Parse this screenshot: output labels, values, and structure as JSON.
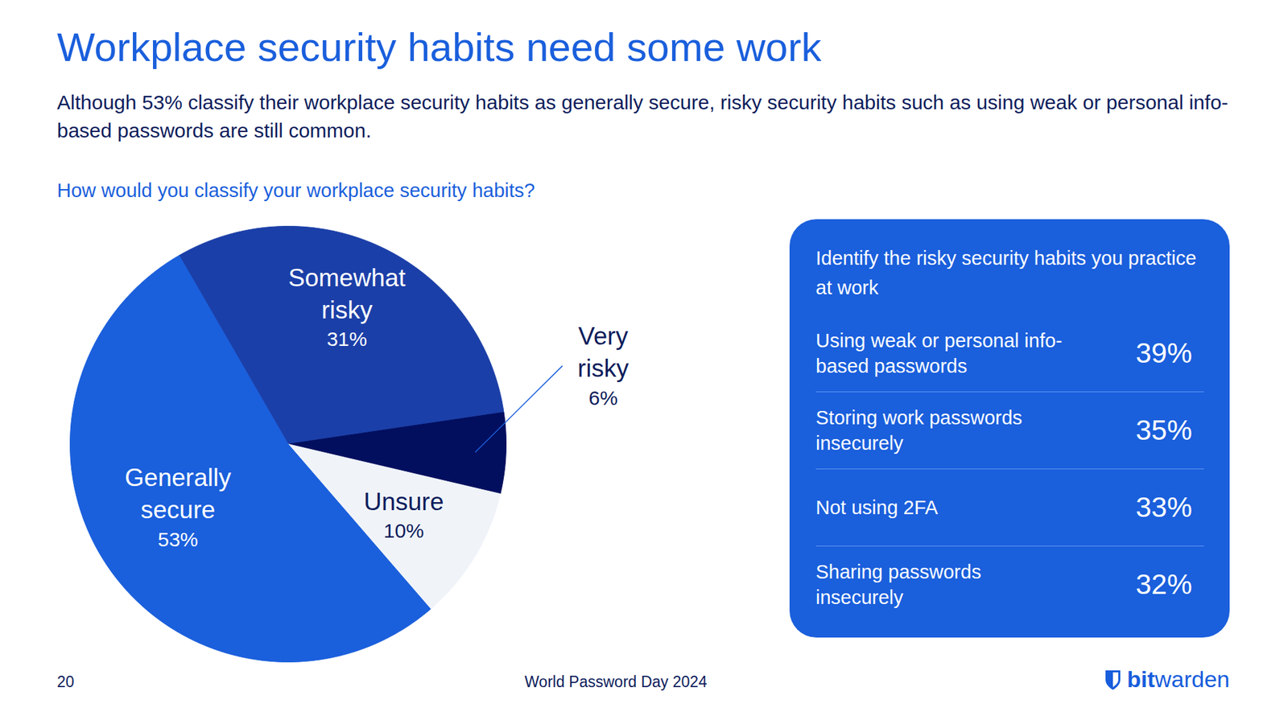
{
  "title": "Workplace security habits need some work",
  "subtitle": "Although 53% classify their workplace security habits as generally secure, risky security habits such as using weak or personal info-based passwords are still common.",
  "chart_data": {
    "type": "pie",
    "title": "How would you classify your workplace security habits?",
    "categories": [
      "Somewhat risky",
      "Very risky",
      "Unsure",
      "Generally secure"
    ],
    "values": [
      31,
      6,
      10,
      53
    ],
    "value_labels": [
      "31%",
      "6%",
      "10%",
      "53%"
    ],
    "colors": [
      "#1b3fa8",
      "#020f5e",
      "#f0f4f9",
      "#1a5fdc"
    ],
    "data_labels": true
  },
  "panel": {
    "title": "Identify the risky security habits you practice at work",
    "rows": [
      {
        "label": "Using weak or personal info-based passwords",
        "value": "39%"
      },
      {
        "label": "Storing work passwords insecurely",
        "value": "35%"
      },
      {
        "label": "Not using 2FA",
        "value": "33%"
      },
      {
        "label": "Sharing passwords insecurely",
        "value": "32%"
      }
    ]
  },
  "footer": {
    "page": "20",
    "event": "World Password Day 2024",
    "brand": [
      "bit",
      "warden"
    ]
  }
}
